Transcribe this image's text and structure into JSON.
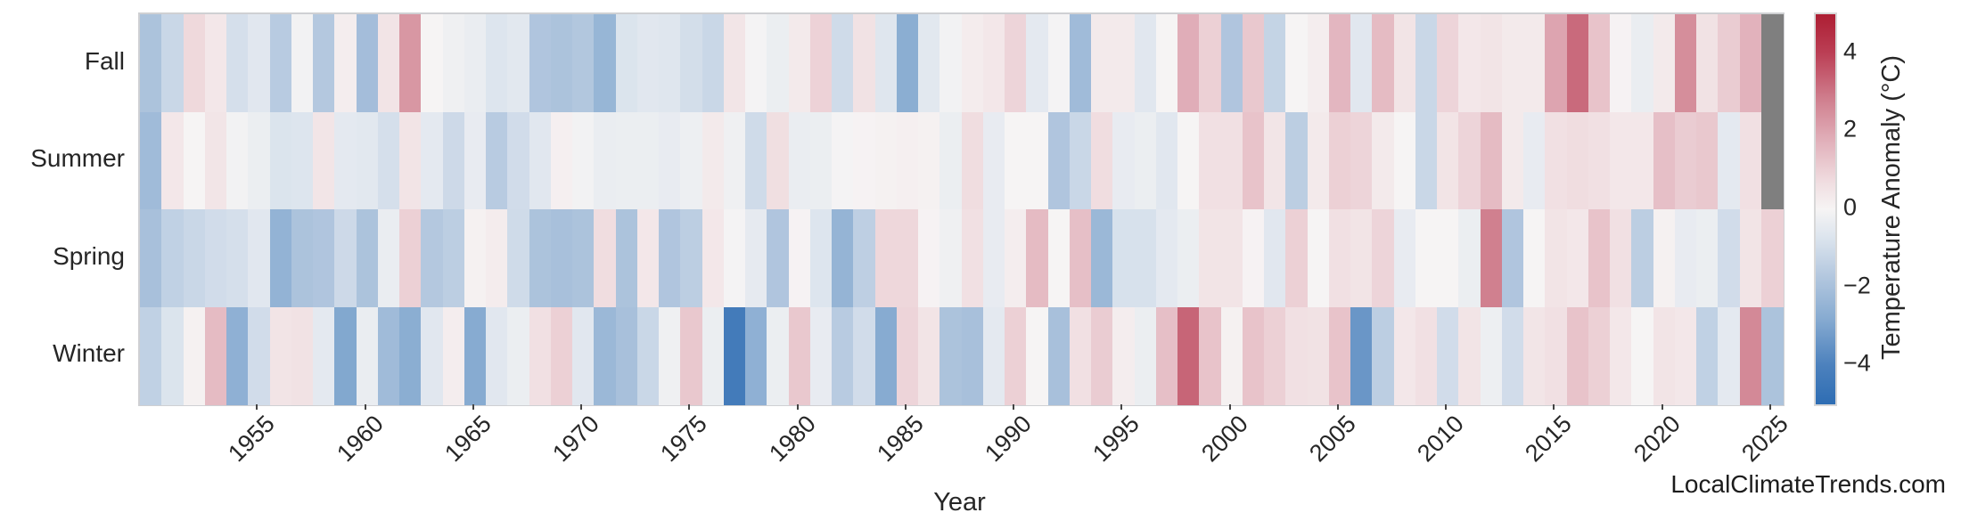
{
  "page": {
    "background": "#ffffff",
    "text_color": "#262626"
  },
  "watermark": "LocalClimateTrends.com",
  "chart_data": {
    "type": "heatmap",
    "title": "",
    "xlabel": "Year",
    "categories_y": [
      "Fall",
      "Summer",
      "Spring",
      "Winter"
    ],
    "x_start_year": 1950,
    "x_end_year": 2025,
    "xticks": [
      1955,
      1960,
      1965,
      1970,
      1975,
      1980,
      1985,
      1990,
      1995,
      2000,
      2005,
      2010,
      2015,
      2020,
      2025
    ],
    "colorbar_label": "Temperature Anomaly (°C)",
    "colorbar_ticks": [
      4,
      2,
      0,
      -2,
      -4
    ],
    "vmin": -5,
    "vmax": 5,
    "grid": false,
    "legend_position": "right-colorbar",
    "missing_color": "#7f7f7f",
    "frame_color": "#cfd0d3",
    "colormap_stops": [
      [
        0.0,
        "#2e6db3"
      ],
      [
        0.1,
        "#4c81bd"
      ],
      [
        0.22,
        "#87abd1"
      ],
      [
        0.33,
        "#b4c8df"
      ],
      [
        0.43,
        "#dde5ee"
      ],
      [
        0.5,
        "#f6f4f4"
      ],
      [
        0.57,
        "#f0dde0"
      ],
      [
        0.67,
        "#e2b2bc"
      ],
      [
        0.78,
        "#d0808f"
      ],
      [
        0.9,
        "#bb3f55"
      ],
      [
        1.0,
        "#ad1e33"
      ]
    ],
    "series": [
      {
        "name": "Fall",
        "values": [
          -1.9,
          -1.2,
          0.8,
          0.4,
          -0.9,
          -0.6,
          -1.6,
          -0.1,
          -1.7,
          0.2,
          -2.1,
          0.5,
          2.3,
          0.0,
          -0.2,
          -0.35,
          -0.7,
          -0.55,
          -1.8,
          -1.9,
          -1.75,
          -2.4,
          -0.75,
          -0.6,
          -0.65,
          -0.95,
          -1.2,
          0.45,
          -0.05,
          -0.3,
          0.3,
          0.95,
          -1.05,
          0.55,
          -0.65,
          -2.7,
          -0.55,
          -0.1,
          0.25,
          0.4,
          0.9,
          -0.5,
          -0.05,
          -2.2,
          0.3,
          0.3,
          -0.6,
          0.0,
          1.8,
          1.0,
          -1.8,
          1.2,
          -1.3,
          0.0,
          0.2,
          1.6,
          -0.6,
          1.5,
          0.5,
          -1.2,
          0.9,
          0.4,
          0.5,
          0.3,
          0.3,
          2.0,
          3.2,
          1.3,
          0.05,
          -0.35,
          0.3,
          2.5,
          0.55,
          1.1,
          1.7,
          null
        ]
      },
      {
        "name": "Summer",
        "values": [
          -2.2,
          0.4,
          0.0,
          0.45,
          -0.1,
          -0.3,
          -0.75,
          -0.7,
          0.45,
          -0.5,
          -0.55,
          -0.9,
          0.5,
          -0.5,
          -1.1,
          -0.4,
          -1.6,
          -1.0,
          -0.6,
          0.15,
          -0.1,
          -0.35,
          -0.3,
          -0.3,
          -0.4,
          -0.25,
          0.3,
          -0.2,
          -1.05,
          0.65,
          -0.35,
          -0.3,
          -0.05,
          0.05,
          0.1,
          0.15,
          0.1,
          -0.3,
          0.7,
          -0.4,
          0.0,
          0.0,
          -1.8,
          -1.2,
          0.7,
          -0.4,
          -0.3,
          -0.6,
          0.0,
          0.6,
          0.6,
          1.3,
          0.45,
          -1.5,
          0.3,
          1.0,
          0.9,
          0.3,
          0.0,
          -1.2,
          0.5,
          0.9,
          1.5,
          0.3,
          -0.4,
          0.6,
          0.7,
          0.6,
          0.4,
          0.4,
          1.4,
          1.1,
          1.2,
          -0.5,
          0.6,
          null
        ]
      },
      {
        "name": "Spring",
        "values": [
          -2.0,
          -1.4,
          -1.2,
          -1.0,
          -0.9,
          -0.6,
          -2.5,
          -1.9,
          -1.8,
          -1.1,
          -1.9,
          -0.35,
          1.0,
          -1.7,
          -1.5,
          0.1,
          0.25,
          -1.05,
          -1.9,
          -2.0,
          -1.9,
          0.7,
          -1.9,
          0.4,
          -1.8,
          -1.5,
          0.4,
          -0.05,
          -0.45,
          -1.8,
          0.05,
          -0.7,
          -2.45,
          -1.45,
          0.85,
          0.85,
          0.05,
          -0.2,
          0.6,
          -0.4,
          0.2,
          1.5,
          0.0,
          1.4,
          -2.3,
          -0.85,
          -0.85,
          -0.5,
          -0.3,
          0.5,
          0.5,
          0.05,
          -0.6,
          1.0,
          0.0,
          0.6,
          0.5,
          0.9,
          -0.4,
          0.0,
          0.0,
          -0.3,
          2.8,
          -1.8,
          0.0,
          0.5,
          0.4,
          1.3,
          0.6,
          -1.5,
          0.1,
          -0.4,
          -0.3,
          -1.0,
          0.5,
          1.0
        ]
      },
      {
        "name": "Winter",
        "values": [
          -1.4,
          -0.75,
          0.1,
          1.5,
          -2.6,
          -1.0,
          0.5,
          0.55,
          -0.5,
          -2.9,
          -0.35,
          -2.2,
          -2.7,
          -0.6,
          0.2,
          -2.8,
          -0.6,
          -0.3,
          0.6,
          1.0,
          -0.6,
          -2.3,
          -2.0,
          -1.2,
          -0.2,
          1.2,
          -0.3,
          -4.3,
          -2.6,
          -0.3,
          1.2,
          -0.4,
          -1.6,
          -1.0,
          -2.8,
          0.9,
          0.5,
          -1.9,
          -2.0,
          -0.5,
          1.0,
          0.0,
          -2.0,
          0.6,
          1.1,
          0.2,
          -0.3,
          1.4,
          3.3,
          1.3,
          0.1,
          1.3,
          1.0,
          0.6,
          0.55,
          1.3,
          -3.4,
          -1.5,
          0.4,
          0.6,
          -1.0,
          0.5,
          -0.25,
          -1.0,
          0.45,
          0.6,
          1.3,
          1.0,
          0.4,
          0.0,
          0.5,
          0.4,
          -1.4,
          -0.5,
          2.6,
          -1.9
        ]
      }
    ]
  }
}
